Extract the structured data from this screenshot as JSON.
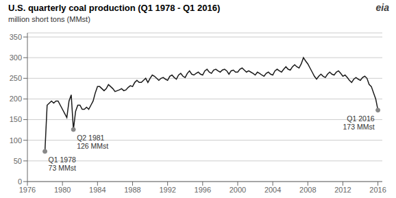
{
  "chart_data": {
    "type": "line",
    "title": "U.S. quarterly coal production (Q1 1978 - Q1 2016)",
    "ylabel": "million short tons (MMst)",
    "color": "#1a1a1a",
    "grid": true,
    "xlim": [
      1976,
      2016.5
    ],
    "ylim": [
      0,
      360
    ],
    "xticks": [
      1976,
      1980,
      1984,
      1988,
      1992,
      1996,
      2000,
      2004,
      2008,
      2012,
      2016
    ],
    "yticks": [
      0,
      50,
      100,
      150,
      200,
      250,
      300,
      350
    ],
    "annotations": [
      {
        "label": "Q1 1978\n73 MMst",
        "x": 1978.0,
        "y": 73
      },
      {
        "label": "Q2 1981\n126 MMst",
        "x": 1981.25,
        "y": 126
      },
      {
        "label": "Q1 2016\n173 MMst",
        "x": 2016.0,
        "y": 173
      },
      {
        "label": "eia"
      }
    ],
    "x": [
      1978.0,
      1978.25,
      1978.5,
      1978.75,
      1979.0,
      1979.25,
      1979.5,
      1979.75,
      1980.0,
      1980.25,
      1980.5,
      1980.75,
      1981.0,
      1981.25,
      1981.5,
      1981.75,
      1982.0,
      1982.25,
      1982.5,
      1982.75,
      1983.0,
      1983.25,
      1983.5,
      1983.75,
      1984.0,
      1984.25,
      1984.5,
      1984.75,
      1985.0,
      1985.25,
      1985.5,
      1985.75,
      1986.0,
      1986.25,
      1986.5,
      1986.75,
      1987.0,
      1987.25,
      1987.5,
      1987.75,
      1988.0,
      1988.25,
      1988.5,
      1988.75,
      1989.0,
      1989.25,
      1989.5,
      1989.75,
      1990.0,
      1990.25,
      1990.5,
      1990.75,
      1991.0,
      1991.25,
      1991.5,
      1991.75,
      1992.0,
      1992.25,
      1992.5,
      1992.75,
      1993.0,
      1993.25,
      1993.5,
      1993.75,
      1994.0,
      1994.25,
      1994.5,
      1994.75,
      1995.0,
      1995.25,
      1995.5,
      1995.75,
      1996.0,
      1996.25,
      1996.5,
      1996.75,
      1997.0,
      1997.25,
      1997.5,
      1997.75,
      1998.0,
      1998.25,
      1998.5,
      1998.75,
      1999.0,
      1999.25,
      1999.5,
      1999.75,
      2000.0,
      2000.25,
      2000.5,
      2000.75,
      2001.0,
      2001.25,
      2001.5,
      2001.75,
      2002.0,
      2002.25,
      2002.5,
      2002.75,
      2003.0,
      2003.25,
      2003.5,
      2003.75,
      2004.0,
      2004.25,
      2004.5,
      2004.75,
      2005.0,
      2005.25,
      2005.5,
      2005.75,
      2006.0,
      2006.25,
      2006.5,
      2006.75,
      2007.0,
      2007.25,
      2007.5,
      2007.75,
      2008.0,
      2008.25,
      2008.5,
      2008.75,
      2009.0,
      2009.25,
      2009.5,
      2009.75,
      2010.0,
      2010.25,
      2010.5,
      2010.75,
      2011.0,
      2011.25,
      2011.5,
      2011.75,
      2012.0,
      2012.25,
      2012.5,
      2012.75,
      2013.0,
      2013.25,
      2013.5,
      2013.75,
      2014.0,
      2014.25,
      2014.5,
      2014.75,
      2015.0,
      2015.25,
      2015.5,
      2015.75,
      2016.0
    ],
    "values": [
      73,
      185,
      190,
      195,
      190,
      195,
      195,
      185,
      175,
      165,
      155,
      195,
      210,
      126,
      170,
      185,
      185,
      175,
      175,
      180,
      175,
      185,
      195,
      215,
      230,
      230,
      225,
      220,
      225,
      235,
      230,
      225,
      218,
      220,
      222,
      225,
      220,
      222,
      228,
      232,
      230,
      240,
      245,
      240,
      240,
      245,
      250,
      240,
      250,
      258,
      255,
      250,
      245,
      250,
      252,
      248,
      245,
      255,
      258,
      252,
      248,
      258,
      262,
      255,
      252,
      262,
      268,
      260,
      258,
      262,
      265,
      260,
      258,
      268,
      272,
      265,
      262,
      270,
      272,
      268,
      265,
      270,
      272,
      268,
      260,
      268,
      270,
      265,
      265,
      272,
      275,
      270,
      265,
      268,
      265,
      262,
      258,
      265,
      262,
      258,
      255,
      262,
      265,
      260,
      258,
      268,
      272,
      268,
      265,
      272,
      278,
      272,
      270,
      278,
      283,
      278,
      275,
      285,
      300,
      292,
      285,
      275,
      265,
      255,
      248,
      255,
      260,
      255,
      252,
      260,
      265,
      260,
      258,
      265,
      268,
      262,
      255,
      258,
      252,
      245,
      240,
      248,
      252,
      248,
      245,
      252,
      255,
      250,
      235,
      230,
      215,
      200,
      173
    ]
  }
}
